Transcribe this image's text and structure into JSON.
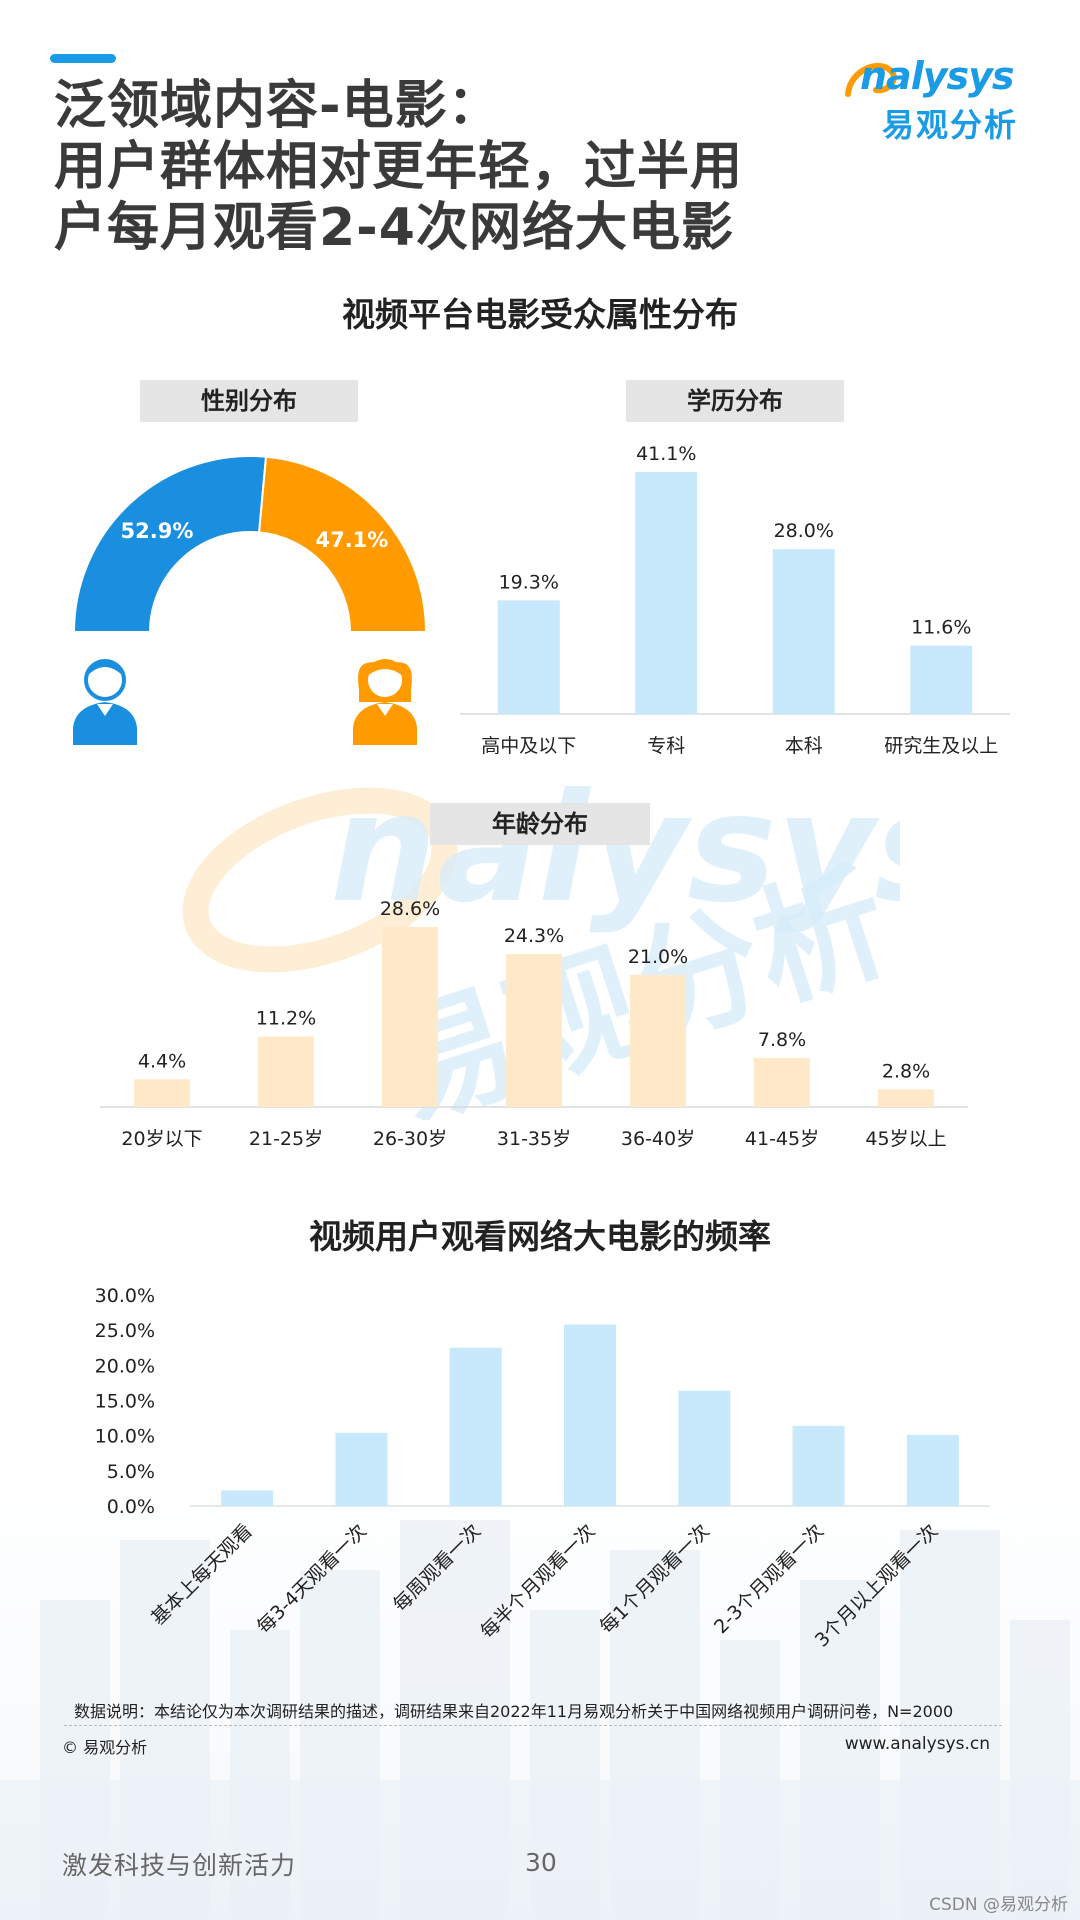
{
  "header": {
    "title_lines": [
      "泛领域内容-电影：",
      "用户群体相对更年轻，过半用",
      "户每月观看2-4次网络大电影"
    ],
    "logo_en": "nalysys",
    "logo_cn": "易观分析"
  },
  "section1_title": "视频平台电影受众属性分布",
  "section2_title": "视频用户观看网络大电影的频率",
  "colors": {
    "male": "#1a8fe0",
    "female": "#ff9a00",
    "edu_bar": "#c8e9fb",
    "age_bar": "#ffe9c8",
    "freq_bar": "#c8e9fb",
    "brand": "#1a9be6"
  },
  "chart_data": [
    {
      "type": "pie",
      "title": "性别分布",
      "slices": [
        {
          "name": "male",
          "value": 52.9,
          "label": "52.9%",
          "color": "#1a8fe0",
          "icon": "male-user-icon"
        },
        {
          "name": "female",
          "value": 47.1,
          "label": "47.1%",
          "color": "#ff9a00",
          "icon": "female-user-icon"
        }
      ]
    },
    {
      "type": "bar",
      "title": "学历分布",
      "categories": [
        "高中及以下",
        "专科",
        "本科",
        "研究生及以上"
      ],
      "values": [
        19.3,
        41.1,
        28.0,
        11.6
      ],
      "labels": [
        "19.3%",
        "41.1%",
        "28.0%",
        "11.6%"
      ],
      "ylim": [
        0,
        41.1
      ]
    },
    {
      "type": "bar",
      "title": "年龄分布",
      "categories": [
        "20岁以下",
        "21-25岁",
        "26-30岁",
        "31-35岁",
        "36-40岁",
        "41-45岁",
        "45岁以上"
      ],
      "values": [
        4.4,
        11.2,
        28.6,
        24.3,
        21.0,
        7.8,
        2.8
      ],
      "labels": [
        "4.4%",
        "11.2%",
        "28.6%",
        "24.3%",
        "21.0%",
        "7.8%",
        "2.8%"
      ],
      "ylim": [
        0,
        28.6
      ]
    },
    {
      "type": "bar",
      "categories": [
        "基本上每天观看",
        "每3-4天观看一次",
        "每周观看一次",
        "每半个月观看一次",
        "每1个月观看一次",
        "2-3个月观看一次",
        "3个月以上观看一次"
      ],
      "values": [
        2.2,
        10.4,
        22.5,
        25.8,
        16.4,
        11.4,
        10.1
      ],
      "ylim": [
        0,
        30
      ],
      "yticks": [
        "30.0%",
        "25.0%",
        "20.0%",
        "15.0%",
        "10.0%",
        "5.0%",
        "0.0%"
      ],
      "ytick_values": [
        30,
        25,
        20,
        15,
        10,
        5,
        0
      ],
      "grid": false
    }
  ],
  "watermark": {
    "en": "nalysys",
    "cn": "易观分析"
  },
  "footer": {
    "note": "数据说明：本结论仅为本次调研结果的描述，调研结果来自2022年11月易观分析关于中国网络视频用户调研问卷，N=2000",
    "copyright": "© 易观分析",
    "website": "www.analysys.cn",
    "slogan": "激发科技与创新活力",
    "page_number": "30",
    "csdn": "CSDN @易观分析"
  }
}
